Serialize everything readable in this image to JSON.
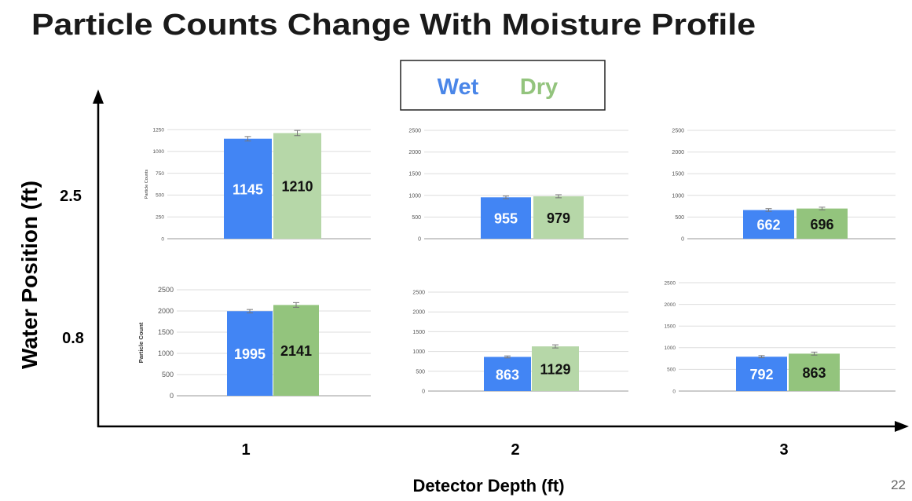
{
  "title": "Particle Counts Change With Moisture Profile",
  "legend": [
    {
      "name": "Wet",
      "color": "#4a86e8"
    },
    {
      "name": "Dry",
      "color": "#93c47d"
    }
  ],
  "y_label": "Water Position (ft)",
  "x_label": "Detector Depth (ft)",
  "row_labels": [
    "2.5",
    "0.8"
  ],
  "column_labels": [
    "1",
    "2",
    "3"
  ],
  "page_number": "22",
  "chart_data": [
    {
      "type": "bar",
      "ylabel": "Particle Counts",
      "values": [
        1145,
        1210
      ],
      "errors": [
        25,
        30
      ],
      "colors": [
        "#4285f4",
        "#b6d7a8"
      ],
      "ylim": [
        0,
        1250
      ],
      "yticks": [
        0,
        250,
        500,
        750,
        1000,
        1250
      ],
      "grid": true
    },
    {
      "type": "bar",
      "values": [
        955,
        979
      ],
      "errors": [
        30,
        35
      ],
      "colors": [
        "#4285f4",
        "#b6d7a8"
      ],
      "ylim": [
        0,
        2500
      ],
      "yticks": [
        0,
        500,
        1000,
        1500,
        2000,
        2500
      ],
      "grid": true
    },
    {
      "type": "bar",
      "values": [
        662,
        696
      ],
      "errors": [
        30,
        30
      ],
      "colors": [
        "#4285f4",
        "#93c47d"
      ],
      "ylim": [
        0,
        2500
      ],
      "yticks": [
        0,
        500,
        1000,
        1500,
        2000,
        2500
      ],
      "grid": true
    },
    {
      "type": "bar",
      "ylabel": "Particle Count",
      "values": [
        1995,
        2141
      ],
      "errors": [
        40,
        55
      ],
      "colors": [
        "#4285f4",
        "#93c47d"
      ],
      "ylim": [
        0,
        2500
      ],
      "yticks": [
        0,
        500,
        1000,
        1500,
        2000,
        2500
      ],
      "grid": true
    },
    {
      "type": "bar",
      "values": [
        863,
        1129
      ],
      "errors": [
        25,
        40
      ],
      "colors": [
        "#4285f4",
        "#b6d7a8"
      ],
      "ylim": [
        0,
        2500
      ],
      "yticks": [
        0,
        500,
        1000,
        1500,
        2000,
        2500
      ],
      "grid": true
    },
    {
      "type": "bar",
      "values": [
        792,
        863
      ],
      "errors": [
        25,
        35
      ],
      "colors": [
        "#4285f4",
        "#93c47d"
      ],
      "ylim": [
        0,
        2500
      ],
      "yticks": [
        0,
        500,
        1000,
        1500,
        2000,
        2500
      ],
      "grid": true
    }
  ]
}
